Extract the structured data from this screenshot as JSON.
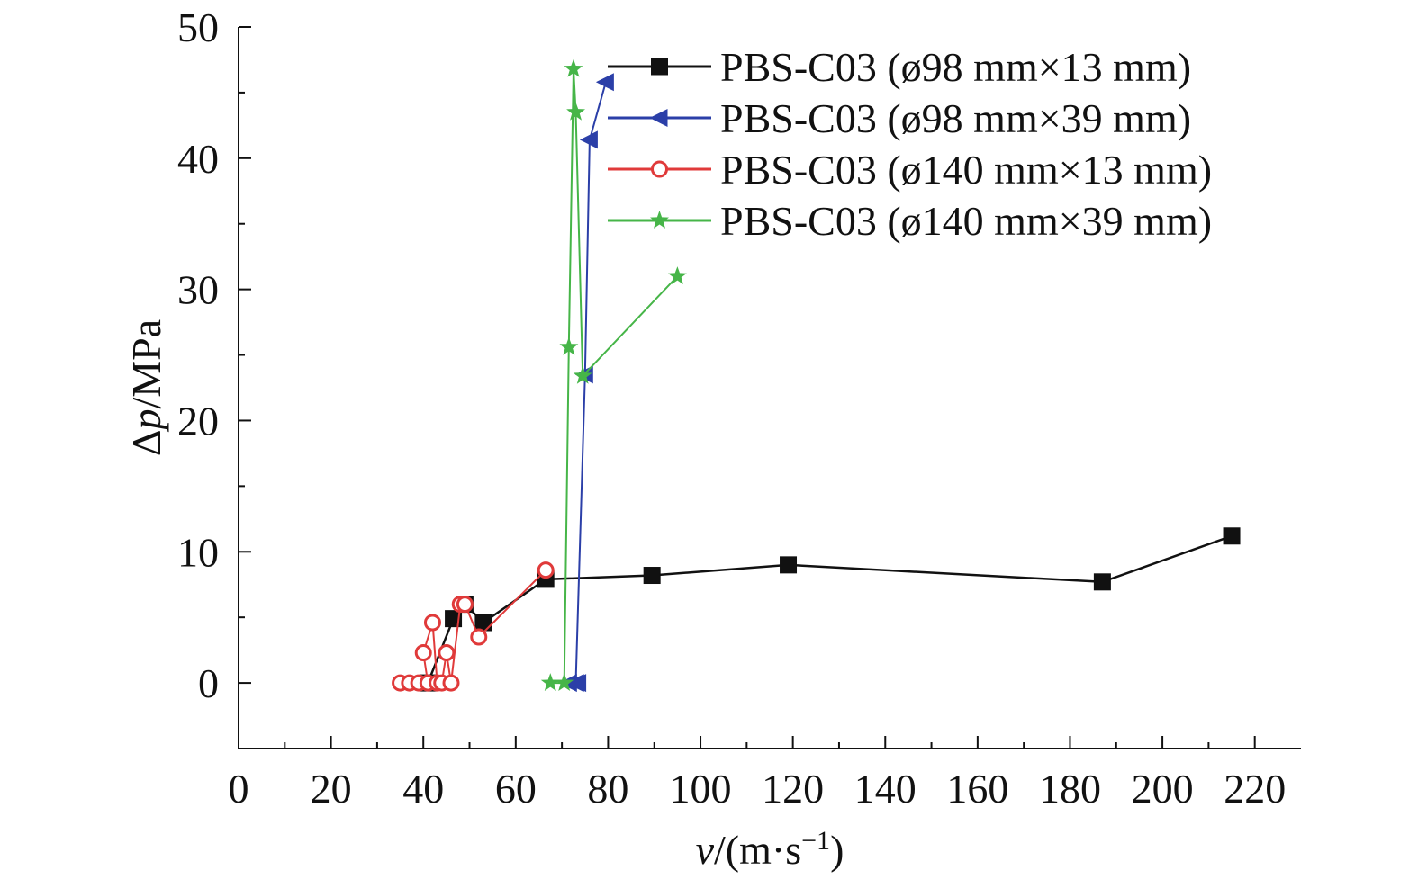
{
  "chart_data": {
    "type": "line",
    "xlabel": {
      "var": "v",
      "rest": "/(m·s",
      "sup": "−1",
      "close": ")"
    },
    "ylabel": {
      "prefix": "Δ",
      "var": "p",
      "rest": "/MPa"
    },
    "xlim": [
      0,
      230
    ],
    "ylim": [
      -5,
      50
    ],
    "x_ticks": [
      0,
      20,
      40,
      60,
      80,
      100,
      120,
      140,
      160,
      180,
      200,
      220
    ],
    "y_ticks": [
      0,
      10,
      20,
      30,
      40,
      50
    ],
    "grid": false,
    "legend_position": "top-right",
    "series": [
      {
        "name": "PBS-C03 (ø98 mm×13 mm)",
        "color": "#111111",
        "marker": "square",
        "x": [
          41,
          46.5,
          49,
          53,
          66.5,
          89.5,
          119,
          187,
          215
        ],
        "y": [
          0,
          4.9,
          6.0,
          4.6,
          7.9,
          8.2,
          9.0,
          7.7,
          11.2
        ]
      },
      {
        "name": "PBS-C03 (ø98 mm×39 mm)",
        "color": "#2b3fa8",
        "marker": "triangle-left",
        "x": [
          73.5,
          71.5,
          73,
          75,
          76,
          79.5
        ],
        "y": [
          0,
          0,
          0,
          23.5,
          41.4,
          45.8
        ]
      },
      {
        "name": "PBS-C03 (ø140 mm×13 mm)",
        "color": "#e03a3a",
        "marker": "circle-open",
        "x": [
          35,
          37,
          39,
          41,
          40,
          42,
          43,
          44,
          45,
          46,
          48,
          49,
          52,
          66.5
        ],
        "y": [
          0,
          0,
          0,
          0,
          2.3,
          4.6,
          0,
          0,
          2.3,
          0,
          6.0,
          6.0,
          3.5,
          8.6
        ]
      },
      {
        "name": "PBS-C03 (ø140 mm×39 mm)",
        "color": "#46b548",
        "marker": "star",
        "x": [
          67.5,
          70.5,
          71.5,
          72.5,
          73,
          74.5,
          95
        ],
        "y": [
          0,
          0,
          25.6,
          46.8,
          43.5,
          23.4,
          31.0
        ]
      }
    ]
  }
}
